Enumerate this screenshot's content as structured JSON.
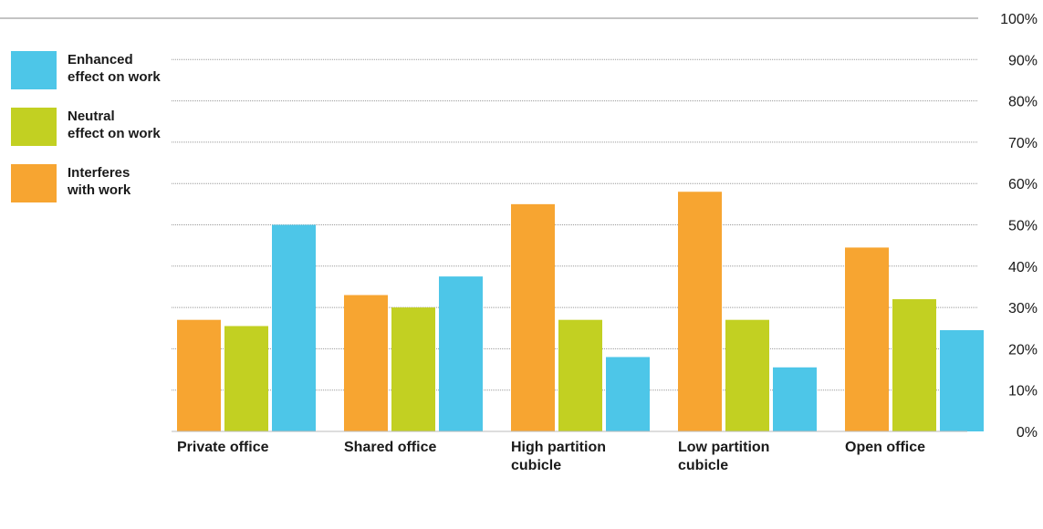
{
  "chart_data": {
    "type": "bar",
    "categories": [
      "Private office",
      "Shared office",
      "High partition cubicle",
      "Low partition cubicle",
      "Open office"
    ],
    "category_lines": [
      [
        "Private office"
      ],
      [
        "Shared office"
      ],
      [
        "High partition",
        "cubicle"
      ],
      [
        "Low partition",
        "cubicle"
      ],
      [
        "Open office"
      ]
    ],
    "series": [
      {
        "name": "Interferes with work",
        "label_lines": [
          "Interferes",
          "with work"
        ],
        "color": "#F7A531",
        "values": [
          27,
          33,
          55,
          58,
          44.5
        ]
      },
      {
        "name": "Neutral effect on work",
        "label_lines": [
          "Neutral",
          "effect on work"
        ],
        "color": "#C2D022",
        "values": [
          25.5,
          30,
          27,
          27,
          32
        ]
      },
      {
        "name": "Enhanced effect on work",
        "label_lines": [
          "Enhanced",
          "effect on work"
        ],
        "color": "#4DC6E8",
        "values": [
          50,
          37.5,
          18,
          15.5,
          24.5
        ]
      }
    ],
    "legend_order": [
      2,
      1,
      0
    ],
    "ylim": [
      0,
      100
    ],
    "y_ticks": [
      "0%",
      "10%",
      "20%",
      "30%",
      "40%",
      "50%",
      "60%",
      "70%",
      "80%",
      "90%",
      "100%"
    ],
    "title": "",
    "xlabel": "",
    "ylabel": "",
    "grid": true,
    "legend_position": "top-left"
  }
}
